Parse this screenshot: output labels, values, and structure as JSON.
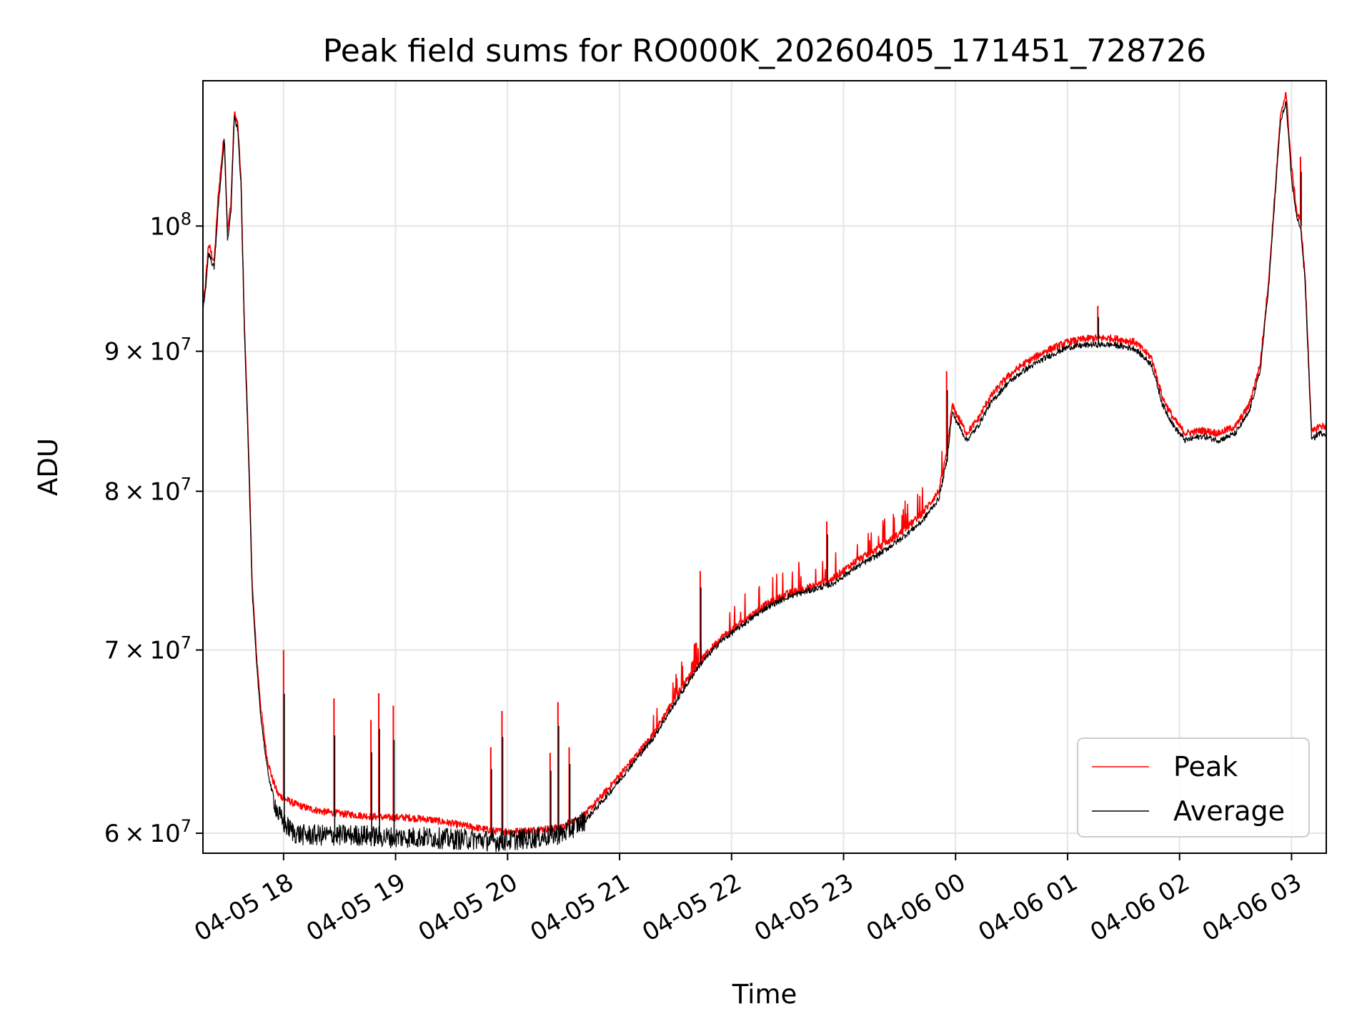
{
  "chart_data": {
    "type": "line",
    "title": "Peak field sums for RO000K_20260405_171451_728726",
    "xlabel": "Time",
    "ylabel": "ADU",
    "yscale": "log",
    "grid": true,
    "legend_position": "lower-right",
    "xlim": [
      17.28,
      27.31
    ],
    "ylim": [
      59000000,
      113000000
    ],
    "x_ticks": [
      {
        "value": 18,
        "label": "04-05 18"
      },
      {
        "value": 19,
        "label": "04-05 19"
      },
      {
        "value": 20,
        "label": "04-05 20"
      },
      {
        "value": 21,
        "label": "04-05 21"
      },
      {
        "value": 22,
        "label": "04-05 22"
      },
      {
        "value": 23,
        "label": "04-05 23"
      },
      {
        "value": 24,
        "label": "04-06 00"
      },
      {
        "value": 25,
        "label": "04-06 01"
      },
      {
        "value": 26,
        "label": "04-06 02"
      },
      {
        "value": 27,
        "label": "04-06 03"
      }
    ],
    "y_ticks": [
      {
        "value": 60000000,
        "mant": "6",
        "base": "10",
        "exp": "7"
      },
      {
        "value": 70000000,
        "mant": "7",
        "base": "10",
        "exp": "7"
      },
      {
        "value": 80000000,
        "mant": "8",
        "base": "10",
        "exp": "7"
      },
      {
        "value": 90000000,
        "mant": "9",
        "base": "10",
        "exp": "7"
      },
      {
        "value": 100000000,
        "mant": "",
        "base": "10",
        "exp": "8"
      }
    ],
    "series": [
      {
        "name": "Peak",
        "color": "#ff0000",
        "x": [
          17.24,
          17.3,
          17.33,
          17.38,
          17.42,
          17.47,
          17.5,
          17.53,
          17.56,
          17.59,
          17.62,
          17.65,
          17.68,
          17.72,
          17.76,
          17.8,
          17.85,
          17.9,
          17.95,
          18.0,
          18.1,
          18.2,
          18.35,
          18.5,
          18.7,
          18.9,
          19.1,
          19.3,
          19.5,
          19.7,
          19.9,
          20.1,
          20.3,
          20.5,
          20.7,
          20.9,
          21.1,
          21.3,
          21.5,
          21.7,
          21.9,
          22.1,
          22.3,
          22.5,
          22.7,
          22.9,
          23.1,
          23.3,
          23.5,
          23.7,
          23.85,
          23.92,
          23.97,
          24.0,
          24.1,
          24.2,
          24.3,
          24.45,
          24.6,
          24.8,
          25.0,
          25.2,
          25.4,
          25.6,
          25.75,
          25.85,
          25.95,
          26.05,
          26.2,
          26.35,
          26.5,
          26.62,
          26.72,
          26.8,
          26.86,
          26.9,
          26.95,
          27.0,
          27.05,
          27.08,
          27.12,
          27.18,
          27.24,
          27.31
        ],
        "y": [
          91500000,
          95000000,
          98500000,
          97000000,
          103000000,
          108000000,
          99500000,
          102000000,
          110000000,
          109000000,
          104000000,
          92000000,
          85000000,
          74000000,
          69500000,
          66500000,
          64000000,
          62800000,
          62000000,
          61800000,
          61500000,
          61300000,
          61100000,
          61000000,
          60900000,
          60800000,
          60800000,
          60700000,
          60500000,
          60300000,
          60100000,
          60100000,
          60200000,
          60300000,
          61000000,
          62300000,
          63700000,
          65200000,
          67300000,
          69200000,
          70700000,
          71700000,
          72700000,
          73400000,
          73800000,
          74300000,
          75400000,
          76200000,
          77200000,
          78500000,
          80000000,
          82500000,
          86000000,
          85500000,
          84000000,
          85000000,
          86500000,
          88000000,
          89000000,
          90000000,
          90700000,
          91000000,
          91000000,
          90700000,
          89500000,
          86500000,
          85000000,
          84000000,
          84200000,
          84000000,
          84500000,
          86000000,
          89000000,
          96000000,
          104000000,
          109500000,
          112000000,
          105000000,
          101000000,
          100500000,
          96000000,
          84000000,
          84500000,
          84500000
        ]
      },
      {
        "name": "Average",
        "color": "#000000",
        "x": [
          17.24,
          17.3,
          17.33,
          17.38,
          17.42,
          17.47,
          17.5,
          17.53,
          17.56,
          17.59,
          17.62,
          17.65,
          17.68,
          17.72,
          17.76,
          17.8,
          17.85,
          17.9,
          17.95,
          18.0,
          18.1,
          18.2,
          18.35,
          18.5,
          18.7,
          18.9,
          19.1,
          19.3,
          19.5,
          19.7,
          19.9,
          20.1,
          20.3,
          20.5,
          20.7,
          20.9,
          21.1,
          21.3,
          21.5,
          21.7,
          21.9,
          22.1,
          22.3,
          22.5,
          22.7,
          22.9,
          23.1,
          23.3,
          23.5,
          23.7,
          23.85,
          23.92,
          23.97,
          24.0,
          24.1,
          24.2,
          24.3,
          24.45,
          24.6,
          24.8,
          25.0,
          25.2,
          25.4,
          25.6,
          25.75,
          25.85,
          25.95,
          26.05,
          26.2,
          26.35,
          26.5,
          26.62,
          26.72,
          26.8,
          26.86,
          26.9,
          26.95,
          27.0,
          27.05,
          27.08,
          27.12,
          27.18,
          27.24,
          27.31
        ],
        "y": [
          91000000,
          94500000,
          97800000,
          96500000,
          102000000,
          107500000,
          98800000,
          101200000,
          109500000,
          108500000,
          103500000,
          91500000,
          84500000,
          73500000,
          69000000,
          66000000,
          63500000,
          62000000,
          61000000,
          60500000,
          60000000,
          59900000,
          59900000,
          59900000,
          59900000,
          59800000,
          59800000,
          59800000,
          59700000,
          59700000,
          59600000,
          59700000,
          59800000,
          60000000,
          60700000,
          62000000,
          63500000,
          65000000,
          67000000,
          69000000,
          70500000,
          71500000,
          72500000,
          73200000,
          73600000,
          74000000,
          75000000,
          75800000,
          76800000,
          78000000,
          79500000,
          82000000,
          85500000,
          85000000,
          83500000,
          84500000,
          86000000,
          87500000,
          88500000,
          89500000,
          90300000,
          90500000,
          90500000,
          90200000,
          89000000,
          86000000,
          84500000,
          83500000,
          83800000,
          83500000,
          84000000,
          85500000,
          88500000,
          95500000,
          103500000,
          109000000,
          111000000,
          104000000,
          100500000,
          100000000,
          95500000,
          83500000,
          84000000,
          84000000
        ]
      }
    ],
    "spikes": [
      {
        "series": "Peak",
        "x": 18.0,
        "y": 70000000
      },
      {
        "series": "Peak",
        "x": 18.45,
        "y": 67200000
      },
      {
        "series": "Peak",
        "x": 18.78,
        "y": 66000000
      },
      {
        "series": "Peak",
        "x": 18.85,
        "y": 67500000
      },
      {
        "series": "Peak",
        "x": 18.98,
        "y": 66800000
      },
      {
        "series": "Peak",
        "x": 19.85,
        "y": 64500000
      },
      {
        "series": "Peak",
        "x": 19.95,
        "y": 66500000
      },
      {
        "series": "Peak",
        "x": 20.38,
        "y": 64200000
      },
      {
        "series": "Peak",
        "x": 20.45,
        "y": 67000000
      },
      {
        "series": "Peak",
        "x": 20.55,
        "y": 64500000
      },
      {
        "series": "Peak",
        "x": 21.72,
        "y": 74800000
      },
      {
        "series": "Peak",
        "x": 22.85,
        "y": 78000000
      },
      {
        "series": "Peak",
        "x": 23.92,
        "y": 88500000
      },
      {
        "series": "Peak",
        "x": 25.27,
        "y": 93500000
      },
      {
        "series": "Peak",
        "x": 27.08,
        "y": 106000000
      }
    ]
  }
}
